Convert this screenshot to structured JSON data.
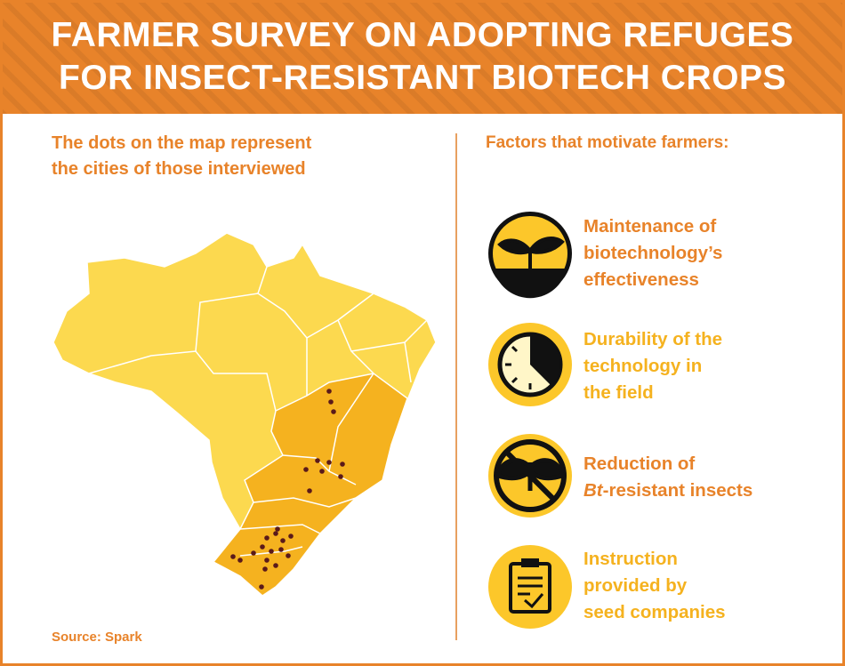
{
  "header": {
    "title": [
      "FARMER SURVEY ON ADOPTING REFUGES",
      "FOR INSECT-RESISTANT BIOTECH CROPS"
    ]
  },
  "map": {
    "caption": [
      "The dots on the map represent",
      "the cities of those interviewed"
    ],
    "source": "Source: Spark"
  },
  "factors": {
    "heading": "Factors that motivate farmers:",
    "items": [
      {
        "label": [
          "Maintenance of",
          "biotechnology’s",
          "effectiveness"
        ]
      },
      {
        "label": [
          "Durability of the",
          "technology in",
          "the field"
        ]
      },
      {
        "label": [
          "Reduction of",
          [
            "Bt",
            "-resistant insects"
          ]
        ]
      },
      {
        "label": [
          "Instruction",
          "provided by",
          "seed companies"
        ]
      }
    ]
  }
}
